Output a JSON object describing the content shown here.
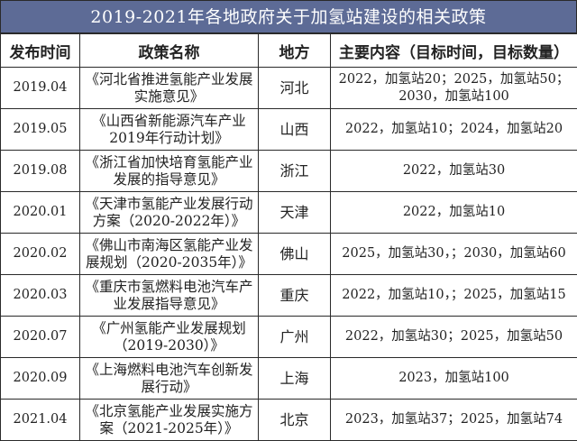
{
  "title": "2019-2021年各地政府关于加氢站建设的相关政策",
  "headers": [
    "发布时间",
    "政策名称",
    "地方",
    "主要内容（目标时间，目标数量）"
  ],
  "rows": [
    {
      "date": "2019.04",
      "name": "《河北省推进氢能产业发展实施意见》",
      "region": "河北",
      "content": "2022，加氢站20；2025，加氢站50；2030，加氢站100"
    },
    {
      "date": "2019.05",
      "name": "《山西省新能源汽车产业2019年行动计划》",
      "region": "山西",
      "content": "2022，加氢站10；2024，加氢站20"
    },
    {
      "date": "2019.08",
      "name": "《浙江省加快培育氢能产业发展的指导意见》",
      "region": "浙江",
      "content": "2022，加氢站30"
    },
    {
      "date": "2020.01",
      "name": "《天津市氢能产业发展行动方案（2020-2022年）》",
      "region": "天津",
      "content": "2022，加氢站10"
    },
    {
      "date": "2020.02",
      "name": "《佛山市南海区氢能产业发展规划（2020-2035年）》",
      "region": "佛山",
      "content": "2025，加氢站30，；2030，加氢站60"
    },
    {
      "date": "2020.03",
      "name": "《重庆市氢燃料电池汽车产业发展指导意见》",
      "region": "重庆",
      "content": "2022，加氢站10，；2025，加氢站15"
    },
    {
      "date": "2020.07",
      "name": "《广州氢能产业发展规划（2019-2030）》",
      "region": "广州",
      "content": "2022，加氢站30；2025，加氢站50"
    },
    {
      "date": "2020.09",
      "name": "《上海燃料电池汽车创新发展行动》",
      "region": "上海",
      "content": "2023，加氢站100"
    },
    {
      "date": "2021.04",
      "name": "《北京氢能产业发展实施方案（2021-2025年）》",
      "region": "北京",
      "content": "2023，加氢站37；2025，加氢站74"
    }
  ]
}
